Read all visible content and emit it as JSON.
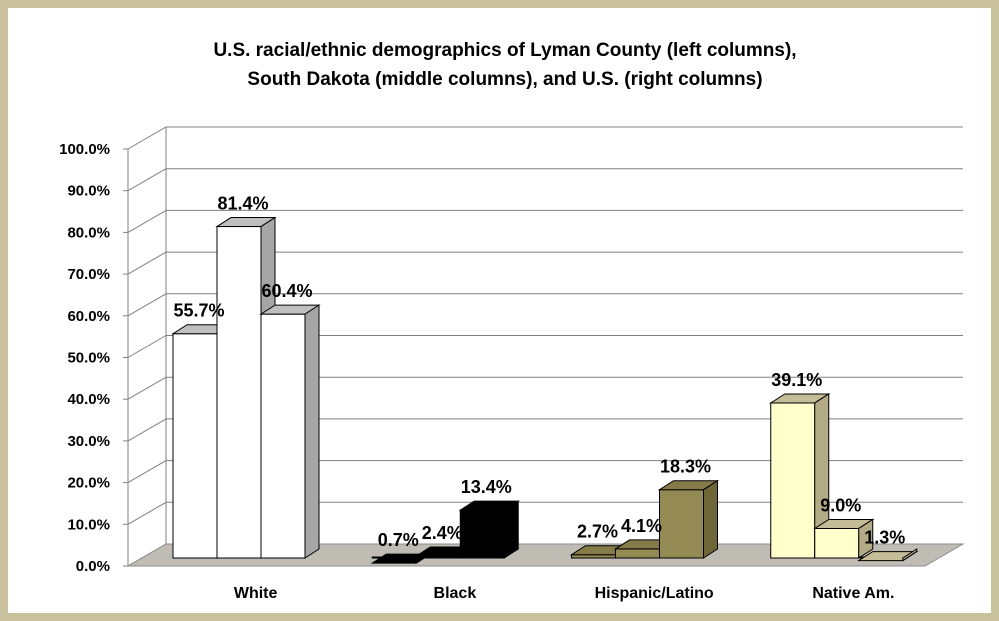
{
  "chart_data": {
    "type": "bar",
    "title_line1": "U.S. racial/ethnic demographics of Lyman County (left columns),",
    "title_line2": "South Dakota (middle columns), and U.S. (right columns)",
    "categories": [
      "White",
      "Black",
      "Hispanic/Latino",
      "Native Am."
    ],
    "series": [
      {
        "values": [
          55.7,
          0.7,
          2.7,
          39.1
        ],
        "labels": [
          "55.7%",
          "0.7%",
          "2.7%",
          "39.1%"
        ]
      },
      {
        "values": [
          81.4,
          2.4,
          4.1,
          9.0
        ],
        "labels": [
          "81.4%",
          "2.4%",
          "4.1%",
          "9.0%"
        ]
      },
      {
        "values": [
          60.4,
          13.4,
          18.3,
          1.3
        ],
        "labels": [
          "60.4%",
          "13.4%",
          "18.3%",
          "1.3%"
        ]
      }
    ],
    "ytick_labels": [
      "0.0%",
      "10.0%",
      "20.0%",
      "30.0%",
      "40.0%",
      "50.0%",
      "60.0%",
      "70.0%",
      "80.0%",
      "90.0%",
      "100.0%"
    ],
    "ylim": [
      0,
      100
    ],
    "grid": true,
    "style": "3d-clustered-columns",
    "category_colors": [
      {
        "front": "#ffffff",
        "top": "#bfbfbf",
        "side": "#a6a6a6"
      },
      {
        "front": "#000000",
        "top": "#000000",
        "side": "#000000"
      },
      {
        "front": "#948a54",
        "top": "#857b48",
        "side": "#6f6638"
      },
      {
        "front": "#ffffcc",
        "top": "#c4bd97",
        "side": "#b2ab86"
      }
    ],
    "floor_color": "#bfbcb3",
    "frame_color": "#c9c09c"
  }
}
